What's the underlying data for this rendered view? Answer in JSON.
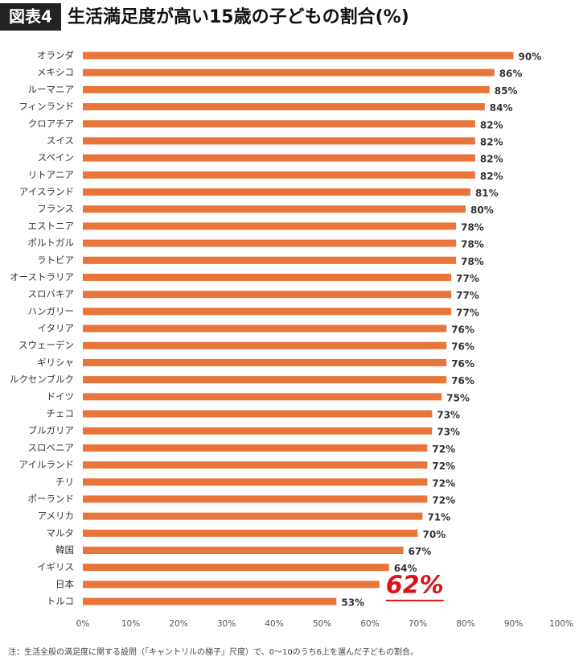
{
  "chart_data": {
    "type": "barh",
    "badge": "図表4",
    "title": "生活満足度が高い15歳の子どもの割合(%)",
    "note": "注：生活全般の満足度に関する設問（「キャントリルの梯子」尺度）で、0〜10のうち6上を選んだ子どもの割合。",
    "categories": [
      "オランダ",
      "メキシコ",
      "ルーマニア",
      "フィンランド",
      "クロアチア",
      "スイス",
      "スペイン",
      "リトアニア",
      "アイスランド",
      "フランス",
      "エストニア",
      "ポルトガル",
      "ラトビア",
      "オーストラリア",
      "スロバキア",
      "ハンガリー",
      "イタリア",
      "スウェーデン",
      "ギリシャ",
      "ルクセンブルク",
      "ドイツ",
      "チェコ",
      "ブルガリア",
      "スロベニア",
      "アイルランド",
      "チリ",
      "ポーランド",
      "アメリカ",
      "マルタ",
      "韓国",
      "イギリス",
      "日本",
      "トルコ"
    ],
    "values": [
      90,
      86,
      85,
      84,
      82,
      82,
      82,
      82,
      81,
      80,
      78,
      78,
      78,
      77,
      77,
      77,
      76,
      76,
      76,
      76,
      75,
      73,
      73,
      72,
      72,
      72,
      72,
      71,
      70,
      67,
      64,
      62,
      53
    ],
    "value_labels": [
      "90%",
      "86%",
      "85%",
      "84%",
      "82%",
      "82%",
      "82%",
      "82%",
      "81%",
      "80%",
      "78%",
      "78%",
      "78%",
      "77%",
      "77%",
      "77%",
      "76%",
      "76%",
      "76%",
      "76%",
      "75%",
      "73%",
      "73%",
      "72%",
      "72%",
      "72%",
      "72%",
      "71%",
      "70%",
      "67%",
      "64%",
      "62%",
      "53%"
    ],
    "color": "#e8763a",
    "highlight": {
      "index": 31,
      "color": "#d7141a"
    },
    "xlim": [
      0,
      100
    ],
    "xticks": [
      {
        "value": 0,
        "label": "0%"
      },
      {
        "value": 10,
        "label": "10%"
      },
      {
        "value": 20,
        "label": "20%"
      },
      {
        "value": 30,
        "label": "30%"
      },
      {
        "value": 40,
        "label": "40%"
      },
      {
        "value": 50,
        "label": "50%"
      },
      {
        "value": 60,
        "label": "60%"
      },
      {
        "value": 70,
        "label": "70%"
      },
      {
        "value": 80,
        "label": "80%"
      },
      {
        "value": 90,
        "label": "90%"
      },
      {
        "value": 100,
        "label": "100%"
      }
    ]
  }
}
